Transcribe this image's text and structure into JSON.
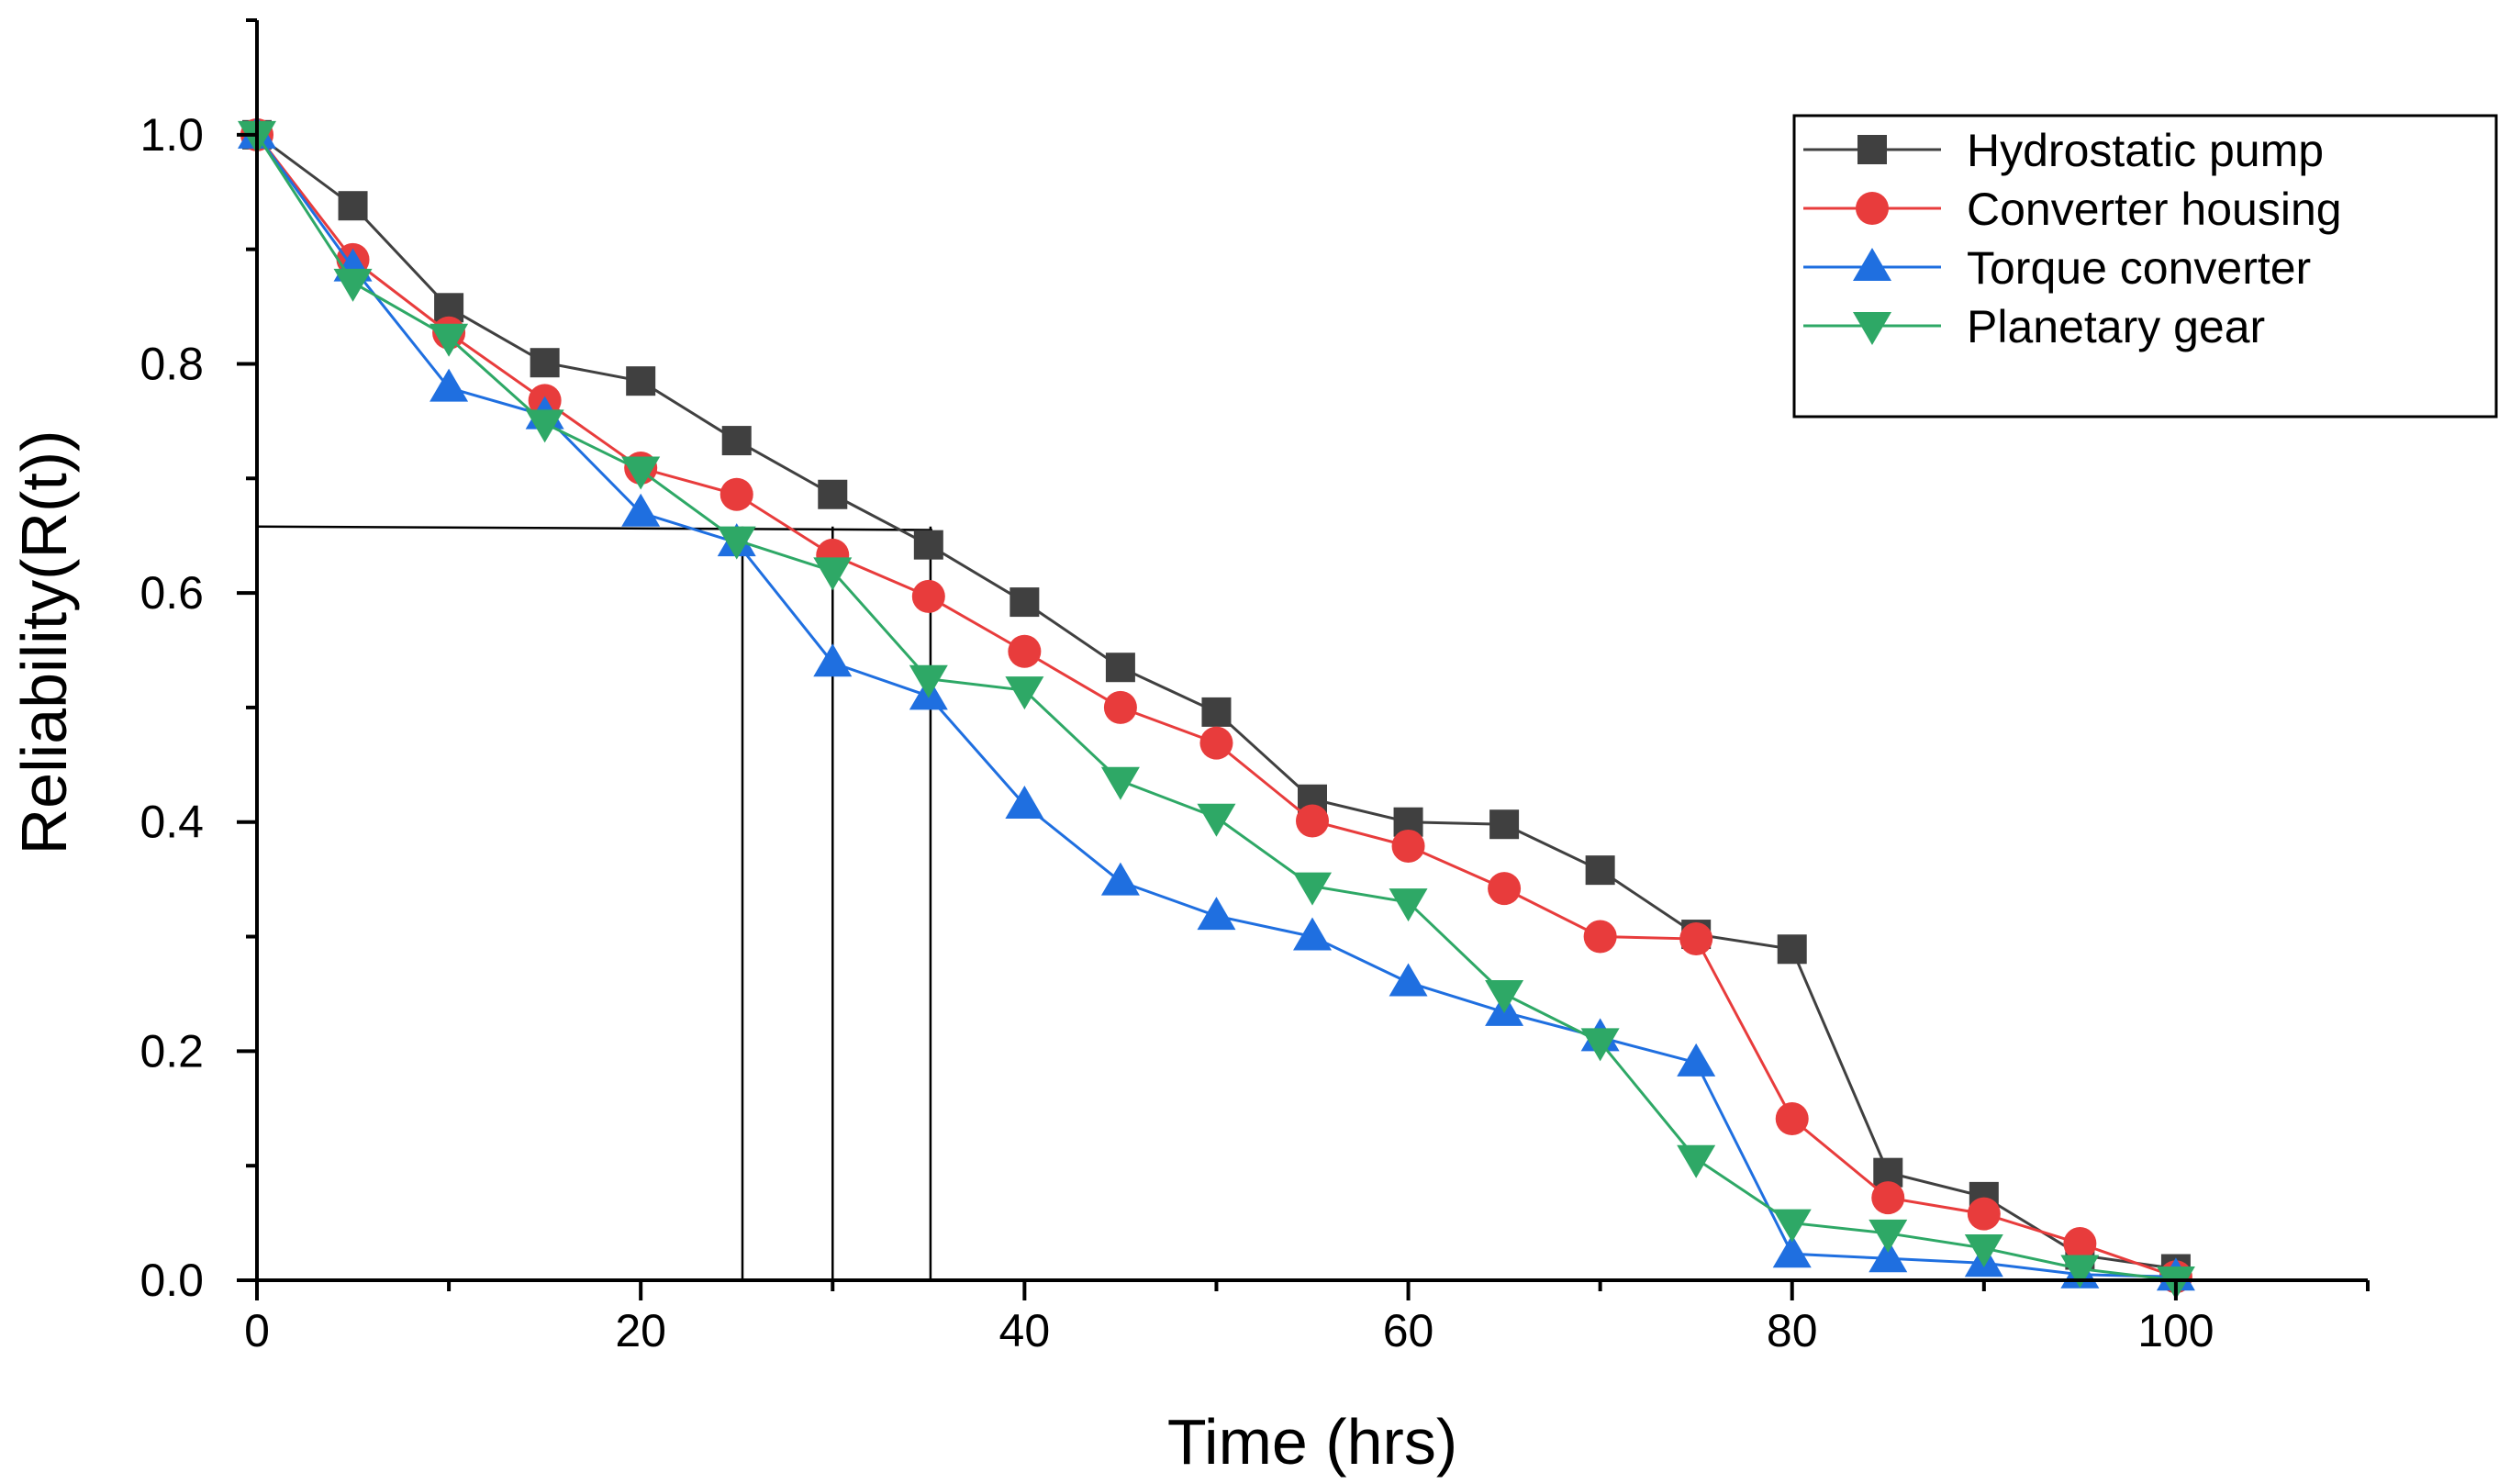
{
  "chart_data": {
    "type": "line",
    "title": "",
    "xlabel": "Time (hrs)",
    "ylabel": "Reliability(R(t))",
    "xlim": [
      0,
      110
    ],
    "ylim": [
      0,
      1.1
    ],
    "xticks": [
      0,
      20,
      40,
      60,
      80,
      100
    ],
    "xtick_labels": [
      "0",
      "20",
      "40",
      "60",
      "80",
      "100"
    ],
    "yticks": [
      0.0,
      0.2,
      0.4,
      0.6,
      0.8,
      1.0
    ],
    "ytick_labels": [
      "0.0",
      "0.2",
      "0.4",
      "0.6",
      "0.8",
      "1.0"
    ],
    "grid": false,
    "legend_position": "top-right",
    "x": [
      0,
      5,
      10,
      15,
      20,
      25,
      30,
      35,
      40,
      45,
      50,
      55,
      60,
      65,
      70,
      75,
      80,
      85,
      90,
      95,
      100
    ],
    "series": [
      {
        "name": "Hydrostatic pump",
        "color": "#404040",
        "marker": "square",
        "values": [
          1.0,
          0.938,
          0.849,
          0.801,
          0.785,
          0.733,
          0.686,
          0.642,
          0.592,
          0.535,
          0.496,
          0.42,
          0.4,
          0.398,
          0.358,
          0.302,
          0.289,
          0.094,
          0.073,
          0.022,
          0.01
        ]
      },
      {
        "name": "Converter housing",
        "color": "#e83c3c",
        "marker": "circle",
        "values": [
          1.0,
          0.891,
          0.827,
          0.768,
          0.709,
          0.686,
          0.633,
          0.597,
          0.549,
          0.5,
          0.469,
          0.401,
          0.379,
          0.342,
          0.3,
          0.298,
          0.141,
          0.072,
          0.058,
          0.032,
          0.003
        ]
      },
      {
        "name": "Torque converter",
        "color": "#1f6fe0",
        "marker": "triangle-up",
        "values": [
          1.0,
          0.884,
          0.779,
          0.755,
          0.67,
          0.644,
          0.539,
          0.51,
          0.415,
          0.348,
          0.318,
          0.3,
          0.26,
          0.234,
          0.212,
          0.19,
          0.023,
          0.019,
          0.015,
          0.005,
          0.003
        ]
      },
      {
        "name": "Planetary gear",
        "color": "#2ea866",
        "marker": "triangle-down",
        "values": [
          1.0,
          0.871,
          0.823,
          0.748,
          0.707,
          0.646,
          0.619,
          0.525,
          0.515,
          0.436,
          0.404,
          0.344,
          0.33,
          0.25,
          0.208,
          0.106,
          0.05,
          0.041,
          0.028,
          0.01,
          0.0
        ]
      }
    ],
    "reference_lines": [
      {
        "from": [
          0,
          0.658
        ],
        "to": [
          35.2,
          0.655
        ]
      },
      {
        "from": [
          25.3,
          0.658
        ],
        "to": [
          25.3,
          0.0
        ]
      },
      {
        "from": [
          30.0,
          0.658
        ],
        "to": [
          30.0,
          0.0
        ]
      },
      {
        "from": [
          35.1,
          0.658
        ],
        "to": [
          35.1,
          0.0
        ]
      }
    ]
  }
}
